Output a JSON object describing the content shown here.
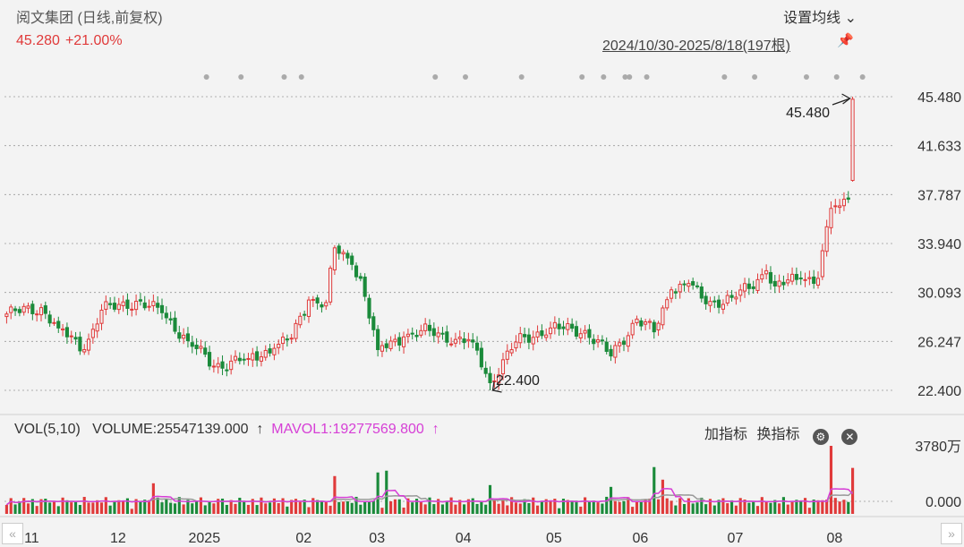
{
  "header": {
    "title": "阅文集团 (日线,前复权)",
    "price": "45.280",
    "change": "+21.00%",
    "ma_setting": "设置均线 ⌄",
    "range": "2024/10/30-2025/8/18(197根)"
  },
  "volume_panel": {
    "label": "VOL(5,10)",
    "volume": "VOLUME:25547139.000",
    "mavol": "MAVOL1:19277569.800",
    "add_indicator": "加指标",
    "switch_indicator": "换指标"
  },
  "colors": {
    "up": "#e03a3a",
    "down": "#1a8a3a",
    "ma5": "#d63fd6",
    "ma10": "#9a9a9a",
    "grid": "#999999"
  },
  "chart_data": {
    "type": "candlestick",
    "title": "阅文集团 (日线,前复权)",
    "price_axis": {
      "ticks": [
        "45.480",
        "41.633",
        "37.787",
        "33.940",
        "30.093",
        "26.247",
        "22.400"
      ],
      "ylim": [
        22.4,
        45.48
      ]
    },
    "volume_axis": {
      "ticks": [
        "3780万",
        "0.000"
      ],
      "max_wan": 3780
    },
    "x_tick_labels": [
      "11",
      "12",
      "2025",
      "02",
      "03",
      "04",
      "05",
      "06",
      "07",
      "08"
    ],
    "annotations": [
      {
        "label": "45.480",
        "value": 45.48,
        "kind": "high"
      },
      {
        "label": "22.400",
        "value": 22.4,
        "kind": "low"
      }
    ],
    "anchors": [
      {
        "i": 0,
        "c": 28.4
      },
      {
        "i": 8,
        "c": 28.9
      },
      {
        "i": 12,
        "c": 27.3
      },
      {
        "i": 18,
        "c": 25.6
      },
      {
        "i": 22,
        "c": 28.7
      },
      {
        "i": 30,
        "c": 29.4
      },
      {
        "i": 36,
        "c": 28.5
      },
      {
        "i": 42,
        "c": 26.3
      },
      {
        "i": 48,
        "c": 24.3
      },
      {
        "i": 56,
        "c": 24.9
      },
      {
        "i": 62,
        "c": 25.7
      },
      {
        "i": 66,
        "c": 26.5
      },
      {
        "i": 70,
        "c": 29.5
      },
      {
        "i": 74,
        "c": 29.3
      },
      {
        "i": 76,
        "c": 33.6
      },
      {
        "i": 80,
        "c": 32.3
      },
      {
        "i": 82,
        "c": 31.2
      },
      {
        "i": 86,
        "c": 25.6
      },
      {
        "i": 92,
        "c": 26.6
      },
      {
        "i": 98,
        "c": 27.1
      },
      {
        "i": 104,
        "c": 26.4
      },
      {
        "i": 108,
        "c": 26.2
      },
      {
        "i": 112,
        "c": 23.0
      },
      {
        "i": 118,
        "c": 26.2
      },
      {
        "i": 126,
        "c": 27.3
      },
      {
        "i": 134,
        "c": 27.1
      },
      {
        "i": 140,
        "c": 25.1
      },
      {
        "i": 146,
        "c": 28.0
      },
      {
        "i": 150,
        "c": 27.0
      },
      {
        "i": 154,
        "c": 30.3
      },
      {
        "i": 158,
        "c": 30.8
      },
      {
        "i": 162,
        "c": 29.2
      },
      {
        "i": 168,
        "c": 29.7
      },
      {
        "i": 172,
        "c": 30.4
      },
      {
        "i": 176,
        "c": 31.8
      },
      {
        "i": 178,
        "c": 30.6
      },
      {
        "i": 184,
        "c": 31.2
      },
      {
        "i": 188,
        "c": 31.2
      },
      {
        "i": 191,
        "c": 36.7
      },
      {
        "i": 193,
        "c": 36.9
      },
      {
        "i": 194,
        "c": 37.42
      },
      {
        "i": 195,
        "c": 37.42
      },
      {
        "i": 196,
        "c": 45.28
      }
    ],
    "final_candle": {
      "open": 38.9,
      "high": 45.48,
      "low": 38.8,
      "close": 45.28,
      "volume": 25547139
    },
    "volume_spikes": [
      {
        "i": 34,
        "v": 1700
      },
      {
        "i": 76,
        "v": 2100
      },
      {
        "i": 86,
        "v": 2300
      },
      {
        "i": 88,
        "v": 2400
      },
      {
        "i": 112,
        "v": 1600
      },
      {
        "i": 140,
        "v": 1500
      },
      {
        "i": 150,
        "v": 2600
      },
      {
        "i": 152,
        "v": 1900
      },
      {
        "i": 191,
        "v": 3780
      },
      {
        "i": 196,
        "v": 2554
      }
    ]
  }
}
